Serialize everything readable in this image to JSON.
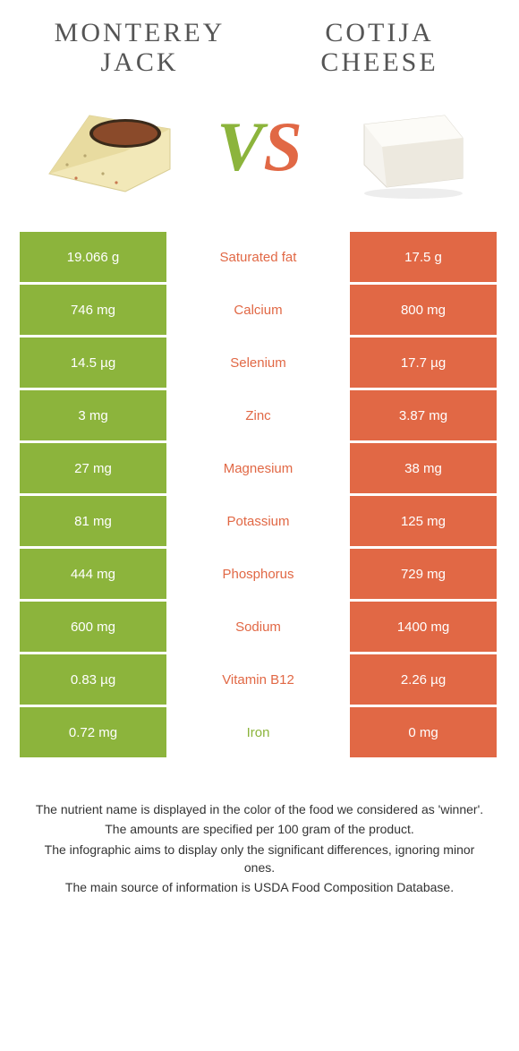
{
  "colors": {
    "green": "#8cb43c",
    "orange": "#e16845",
    "white": "#ffffff",
    "text": "#333333"
  },
  "header": {
    "left_title": "MONTEREY JACK",
    "right_title": "COTIJA CHEESE",
    "vs_v": "V",
    "vs_s": "S"
  },
  "rows": [
    {
      "left": "19.066 g",
      "label": "Saturated fat",
      "right": "17.5 g",
      "winner": "right"
    },
    {
      "left": "746 mg",
      "label": "Calcium",
      "right": "800 mg",
      "winner": "right"
    },
    {
      "left": "14.5 µg",
      "label": "Selenium",
      "right": "17.7 µg",
      "winner": "right"
    },
    {
      "left": "3 mg",
      "label": "Zinc",
      "right": "3.87 mg",
      "winner": "right"
    },
    {
      "left": "27 mg",
      "label": "Magnesium",
      "right": "38 mg",
      "winner": "right"
    },
    {
      "left": "81 mg",
      "label": "Potassium",
      "right": "125 mg",
      "winner": "right"
    },
    {
      "left": "444 mg",
      "label": "Phosphorus",
      "right": "729 mg",
      "winner": "right"
    },
    {
      "left": "600 mg",
      "label": "Sodium",
      "right": "1400 mg",
      "winner": "right"
    },
    {
      "left": "0.83 µg",
      "label": "Vitamin B12",
      "right": "2.26 µg",
      "winner": "right"
    },
    {
      "left": "0.72 mg",
      "label": "Iron",
      "right": "0 mg",
      "winner": "left"
    }
  ],
  "footnotes": [
    "The nutrient name is displayed in the color of the food we considered as 'winner'.",
    "The amounts are specified per 100 gram of the product.",
    "The infographic aims to display only the significant differences, ignoring minor ones.",
    "The main source of information is USDA Food Composition Database."
  ]
}
